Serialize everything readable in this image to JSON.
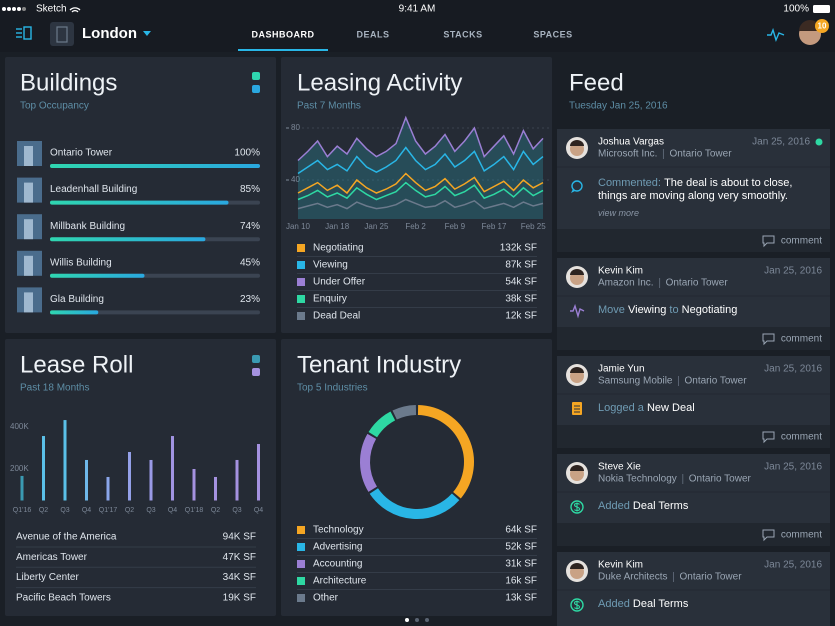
{
  "status_bar": {
    "carrier": "Sketch",
    "time": "9:41 AM",
    "battery": "100%"
  },
  "nav": {
    "city": "London",
    "tabs": [
      "DASHBOARD",
      "DEALS",
      "STACKS",
      "SPACES"
    ],
    "active_tab": 0,
    "notification_count": "10"
  },
  "chart_data": [
    {
      "type": "progress",
      "title": "Buildings",
      "subtitle": "Top Occupancy",
      "categories": [
        "Ontario Tower",
        "Leadenhall Building",
        "Millbank Building",
        "Willis Building",
        "Gla Building"
      ],
      "values": [
        100,
        85,
        74,
        45,
        23
      ],
      "value_labels": [
        "100%",
        "85%",
        "74%",
        "45%",
        "23%"
      ],
      "xlim": [
        0,
        100
      ],
      "colors": [
        "#2fd6b0",
        "#2aa8e0"
      ]
    },
    {
      "type": "line",
      "title": "Leasing Activity",
      "subtitle": "Past 7 Months",
      "categories": [
        "Jan 10",
        null,
        null,
        null,
        "Jan 18",
        null,
        null,
        null,
        "Jan 25",
        null,
        null,
        null,
        "Feb 2",
        null,
        null,
        null,
        "Feb 9",
        null,
        null,
        null,
        "Feb 17",
        null,
        null,
        null,
        "Feb 25",
        null
      ],
      "series": [
        {
          "name": "Negotiating",
          "color": "#f5a623",
          "total": "132k SF",
          "values": [
            30,
            34,
            38,
            32,
            36,
            30,
            40,
            34,
            30,
            33,
            37,
            45,
            38,
            32,
            35,
            41,
            33,
            37,
            42,
            31,
            35,
            39,
            32,
            40,
            34,
            38
          ]
        },
        {
          "name": "Viewing",
          "color": "#29b6e6",
          "total": "87k SF",
          "values": [
            45,
            50,
            55,
            48,
            52,
            47,
            58,
            50,
            46,
            50,
            55,
            65,
            55,
            48,
            52,
            60,
            50,
            55,
            62,
            47,
            52,
            58,
            48,
            62,
            52,
            58
          ]
        },
        {
          "name": "Under Offer",
          "color": "#9b7fd4",
          "total": "54k SF",
          "values": [
            55,
            62,
            70,
            58,
            66,
            60,
            72,
            64,
            58,
            62,
            68,
            88,
            70,
            60,
            66,
            75,
            62,
            70,
            80,
            58,
            66,
            74,
            60,
            78,
            64,
            72
          ]
        },
        {
          "name": "Enquiry",
          "color": "#2ed8a3",
          "total": "38k SF",
          "values": [
            25,
            28,
            32,
            27,
            30,
            26,
            34,
            29,
            25,
            28,
            31,
            38,
            32,
            27,
            29,
            35,
            28,
            31,
            36,
            26,
            29,
            33,
            27,
            34,
            28,
            32
          ]
        },
        {
          "name": "Dead Deal",
          "color": "#6b7a8c",
          "total": "12k SF",
          "values": [
            18,
            20,
            22,
            19,
            21,
            18,
            23,
            20,
            18,
            19,
            21,
            25,
            22,
            19,
            20,
            24,
            19,
            21,
            24,
            18,
            20,
            22,
            19,
            23,
            20,
            22
          ]
        }
      ],
      "ylim": [
        10,
        90
      ],
      "yticks": [
        40,
        80
      ],
      "grid": true
    },
    {
      "type": "bar",
      "title": "Lease Roll",
      "subtitle": "Past 18 Months",
      "categories": [
        "Q1'16",
        "Q2",
        "Q3",
        "Q4",
        "Q1'17",
        "Q2",
        "Q3",
        "Q4",
        "Q1'18",
        "Q2",
        "Q3",
        "Q4"
      ],
      "values": [
        167000,
        357000,
        433000,
        243000,
        162000,
        281000,
        243000,
        357000,
        200000,
        162000,
        243000,
        319000
      ],
      "colors": [
        "#3a9ab2",
        "#5bc0e8",
        "#5bc0e8",
        "#6fb8ea",
        "#8aa6ea",
        "#94a0e8",
        "#9a9ae6",
        "#a194e2",
        "#a592e0",
        "#a592e0",
        "#a592e0",
        "#a592e0"
      ],
      "ylim": [
        50000,
        500000
      ],
      "yticks": [
        {
          "value": 200000,
          "label": "200K"
        },
        {
          "value": 400000,
          "label": "400K"
        }
      ],
      "table_rows": [
        {
          "name": "Avenue of the America",
          "value": "94K SF"
        },
        {
          "name": "Americas Tower",
          "value": "47K SF"
        },
        {
          "name": "Liberty Center",
          "value": "34K SF"
        },
        {
          "name": "Pacific Beach Towers",
          "value": "19K SF"
        }
      ]
    },
    {
      "type": "donut",
      "title": "Tenant Industry",
      "subtitle": "Top 5 Industries",
      "categories": [
        "Technology",
        "Advertising",
        "Accounting",
        "Architecture",
        "Other"
      ],
      "values": [
        64,
        52,
        31,
        16,
        13
      ],
      "value_labels": [
        "64k SF",
        "52k SF",
        "31k SF",
        "16k SF",
        "13k SF"
      ],
      "colors": [
        "#f5a623",
        "#29b6e6",
        "#9b7fd4",
        "#2ed8a3",
        "#6b7a8c"
      ]
    }
  ],
  "feed": {
    "title": "Feed",
    "date": "Tuesday Jan 25, 2016",
    "comment_label": "comment",
    "items": [
      {
        "name": "Joshua Vargas",
        "company": "Microsoft Inc.",
        "location": "Ontario Tower",
        "date": "Jan 25, 2016",
        "online": true,
        "icon": "comment",
        "action": [
          {
            "text": "Commented:",
            "emphasis": false
          },
          {
            "text": "The deal is about to close, things are moving along very smoothly.",
            "emphasis": true
          }
        ],
        "link": "view more"
      },
      {
        "name": "Kevin Kim",
        "company": "Amazon Inc.",
        "location": "Ontario Tower",
        "date": "Jan 25, 2016",
        "icon": "pulse",
        "action": [
          {
            "text": "Move",
            "emphasis": false
          },
          {
            "text": "Viewing",
            "emphasis": true
          },
          {
            "text": "to",
            "emphasis": false
          },
          {
            "text": "Negotiating",
            "emphasis": true
          }
        ]
      },
      {
        "name": "Jamie Yun",
        "company": "Samsung Mobile",
        "location": "Ontario Tower",
        "date": "Jan 25, 2016",
        "icon": "document",
        "action": [
          {
            "text": "Logged a",
            "emphasis": false
          },
          {
            "text": "New Deal",
            "emphasis": true
          }
        ]
      },
      {
        "name": "Steve Xie",
        "company": "Nokia Technology",
        "location": "Ontario Tower",
        "date": "Jan 25, 2016",
        "icon": "dollar",
        "action": [
          {
            "text": "Added",
            "emphasis": false
          },
          {
            "text": "Deal Terms",
            "emphasis": true
          }
        ]
      },
      {
        "name": "Kevin Kim",
        "company": "Duke Architects",
        "location": "Ontario Tower",
        "date": "Jan 25, 2016",
        "icon": "dollar",
        "action": [
          {
            "text": "Added",
            "emphasis": false
          },
          {
            "text": "Deal Terms",
            "emphasis": true
          }
        ]
      }
    ]
  }
}
